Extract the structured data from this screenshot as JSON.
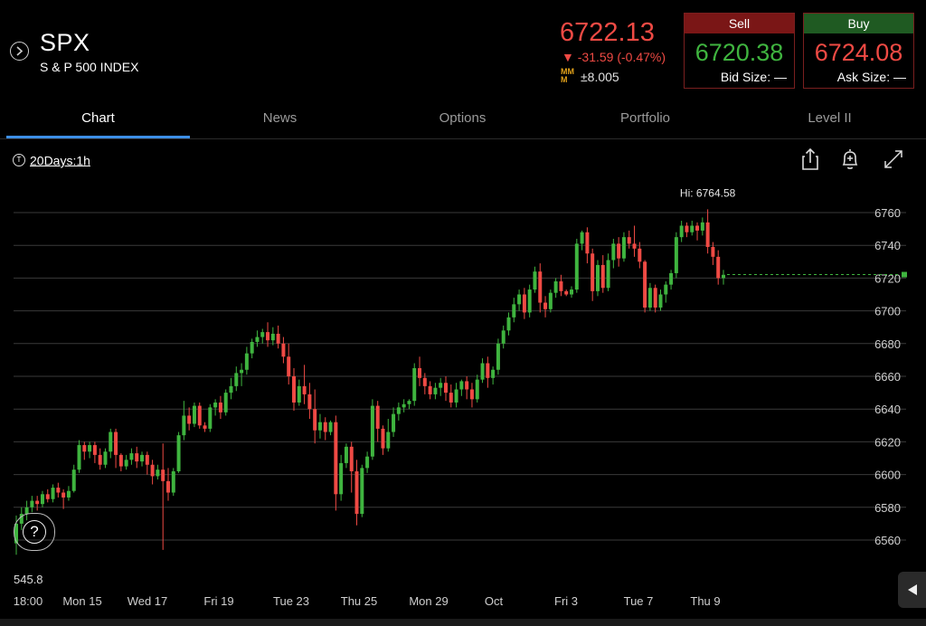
{
  "header": {
    "symbol": "SPX",
    "symbol_name": "S & P 500 INDEX",
    "last_price": "6722.13",
    "change": "▼ -31.59 (-0.47%)",
    "mm_icon_text": "MM M",
    "mm_value": "±8.005",
    "sell": {
      "label": "Sell",
      "price": "6720.38",
      "size": "Bid Size: —"
    },
    "buy": {
      "label": "Buy",
      "price": "6724.08",
      "size": "Ask Size: —"
    }
  },
  "tabs": [
    "Chart",
    "News",
    "Options",
    "Portfolio",
    "Level II"
  ],
  "active_tab": "Chart",
  "toolbar": {
    "range_icon": "T",
    "range_label": "20Days:1h",
    "icons": [
      "share-icon",
      "alert-bell-icon",
      "expand-icon"
    ]
  },
  "help_label": "?",
  "low_label": "545.8",
  "colors": {
    "up": "#3fb43f",
    "down": "#ef4a44",
    "accent": "#3d8fe6",
    "grid": "#3a3a3a"
  },
  "chart_data": {
    "type": "candlestick",
    "interval": "1h",
    "range": "20Days",
    "hi_annotation": "Hi: 6764.58",
    "ylim": [
      6545,
      6770
    ],
    "y_ticks": [
      6560,
      6580,
      6600,
      6620,
      6640,
      6660,
      6680,
      6700,
      6720,
      6740,
      6760
    ],
    "x_labels": [
      "18:00",
      "Mon 15",
      "Wed 17",
      "Fri 19",
      "Tue 23",
      "Thu 25",
      "Mon 29",
      "Oct",
      "Fri 3",
      "Tue 7",
      "Thu 9"
    ],
    "last_value": 6722.13,
    "candles": [
      [
        6558,
        6570,
        6551,
        6575
      ],
      [
        6570,
        6576,
        6566,
        6580
      ],
      [
        6576,
        6580,
        6572,
        6584
      ],
      [
        6580,
        6584,
        6577,
        6587
      ],
      [
        6584,
        6582,
        6578,
        6587
      ],
      [
        6582,
        6588,
        6580,
        6590
      ],
      [
        6588,
        6585,
        6583,
        6591
      ],
      [
        6585,
        6592,
        6583,
        6594
      ],
      [
        6592,
        6589,
        6586,
        6595
      ],
      [
        6589,
        6586,
        6579,
        6591
      ],
      [
        6586,
        6590,
        6584,
        6593
      ],
      [
        6590,
        6603,
        6589,
        6606
      ],
      [
        6603,
        6618,
        6601,
        6621
      ],
      [
        6618,
        6614,
        6609,
        6620
      ],
      [
        6614,
        6618,
        6610,
        6620
      ],
      [
        6618,
        6612,
        6607,
        6620
      ],
      [
        6612,
        6606,
        6603,
        6616
      ],
      [
        6606,
        6614,
        6604,
        6616
      ],
      [
        6614,
        6626,
        6610,
        6628
      ],
      [
        6626,
        6612,
        6604,
        6628
      ],
      [
        6612,
        6605,
        6602,
        6613
      ],
      [
        6605,
        6609,
        6603,
        6612
      ],
      [
        6609,
        6613,
        6606,
        6616
      ],
      [
        6613,
        6608,
        6604,
        6617
      ],
      [
        6608,
        6612,
        6605,
        6614
      ],
      [
        6612,
        6606,
        6600,
        6614
      ],
      [
        6606,
        6599,
        6594,
        6609
      ],
      [
        6599,
        6603,
        6597,
        6606
      ],
      [
        6603,
        6596,
        6554,
        6619
      ],
      [
        6596,
        6589,
        6584,
        6604
      ],
      [
        6589,
        6602,
        6587,
        6604
      ],
      [
        6602,
        6624,
        6601,
        6626
      ],
      [
        6624,
        6636,
        6621,
        6645
      ],
      [
        6636,
        6631,
        6627,
        6641
      ],
      [
        6631,
        6642,
        6629,
        6644
      ],
      [
        6642,
        6630,
        6628,
        6644
      ],
      [
        6630,
        6628,
        6626,
        6632
      ],
      [
        6628,
        6641,
        6626,
        6643
      ],
      [
        6641,
        6644,
        6636,
        6646
      ],
      [
        6644,
        6638,
        6634,
        6648
      ],
      [
        6638,
        6650,
        6636,
        6652
      ],
      [
        6650,
        6654,
        6646,
        6659
      ],
      [
        6654,
        6662,
        6651,
        6666
      ],
      [
        6662,
        6664,
        6654,
        6668
      ],
      [
        6664,
        6674,
        6661,
        6678
      ],
      [
        6674,
        6681,
        6671,
        6683
      ],
      [
        6681,
        6684,
        6678,
        6688
      ],
      [
        6684,
        6687,
        6680,
        6689
      ],
      [
        6687,
        6682,
        6678,
        6693
      ],
      [
        6682,
        6686,
        6679,
        6690
      ],
      [
        6686,
        6680,
        6677,
        6691
      ],
      [
        6680,
        6672,
        6668,
        6684
      ],
      [
        6672,
        6660,
        6655,
        6680
      ],
      [
        6660,
        6644,
        6639,
        6665
      ],
      [
        6644,
        6654,
        6642,
        6658
      ],
      [
        6654,
        6649,
        6643,
        6667
      ],
      [
        6649,
        6640,
        6634,
        6656
      ],
      [
        6640,
        6627,
        6619,
        6652
      ],
      [
        6627,
        6632,
        6622,
        6637
      ],
      [
        6632,
        6626,
        6621,
        6635
      ],
      [
        6626,
        6632,
        6624,
        6633
      ],
      [
        6632,
        6588,
        6578,
        6636
      ],
      [
        6588,
        6607,
        6584,
        6612
      ],
      [
        6607,
        6617,
        6604,
        6619
      ],
      [
        6617,
        6602,
        6589,
        6620
      ],
      [
        6602,
        6576,
        6569,
        6609
      ],
      [
        6576,
        6604,
        6574,
        6606
      ],
      [
        6604,
        6611,
        6601,
        6614
      ],
      [
        6611,
        6642,
        6609,
        6646
      ],
      [
        6642,
        6628,
        6620,
        6645
      ],
      [
        6628,
        6616,
        6612,
        6630
      ],
      [
        6616,
        6626,
        6614,
        6634
      ],
      [
        6626,
        6637,
        6623,
        6641
      ],
      [
        6637,
        6641,
        6633,
        6644
      ],
      [
        6641,
        6643,
        6638,
        6646
      ],
      [
        6643,
        6645,
        6640,
        6646
      ],
      [
        6645,
        6665,
        6642,
        6668
      ],
      [
        6665,
        6659,
        6654,
        6672
      ],
      [
        6659,
        6654,
        6649,
        6662
      ],
      [
        6654,
        6649,
        6646,
        6657
      ],
      [
        6649,
        6653,
        6646,
        6656
      ],
      [
        6653,
        6656,
        6648,
        6659
      ],
      [
        6656,
        6650,
        6645,
        6660
      ],
      [
        6650,
        6644,
        6641,
        6655
      ],
      [
        6644,
        6652,
        6641,
        6656
      ],
      [
        6652,
        6657,
        6648,
        6658
      ],
      [
        6657,
        6652,
        6646,
        6660
      ],
      [
        6652,
        6646,
        6641,
        6656
      ],
      [
        6646,
        6658,
        6644,
        6661
      ],
      [
        6658,
        6668,
        6656,
        6671
      ],
      [
        6668,
        6659,
        6653,
        6672
      ],
      [
        6659,
        6664,
        6655,
        6666
      ],
      [
        6664,
        6680,
        6661,
        6683
      ],
      [
        6680,
        6688,
        6677,
        6691
      ],
      [
        6688,
        6696,
        6685,
        6699
      ],
      [
        6696,
        6704,
        6693,
        6708
      ],
      [
        6704,
        6710,
        6700,
        6713
      ],
      [
        6710,
        6699,
        6695,
        6714
      ],
      [
        6699,
        6713,
        6696,
        6716
      ],
      [
        6713,
        6724,
        6711,
        6727
      ],
      [
        6724,
        6705,
        6699,
        6729
      ],
      [
        6705,
        6701,
        6696,
        6709
      ],
      [
        6701,
        6711,
        6699,
        6713
      ],
      [
        6711,
        6718,
        6708,
        6720
      ],
      [
        6718,
        6712,
        6709,
        6722
      ],
      [
        6712,
        6710,
        6709,
        6713
      ],
      [
        6710,
        6713,
        6708,
        6715
      ],
      [
        6713,
        6741,
        6711,
        6744
      ],
      [
        6741,
        6748,
        6737,
        6749
      ],
      [
        6748,
        6735,
        6729,
        6751
      ],
      [
        6735,
        6712,
        6706,
        6738
      ],
      [
        6712,
        6728,
        6709,
        6731
      ],
      [
        6728,
        6714,
        6711,
        6734
      ],
      [
        6714,
        6731,
        6712,
        6735
      ],
      [
        6731,
        6741,
        6726,
        6744
      ],
      [
        6741,
        6732,
        6727,
        6745
      ],
      [
        6732,
        6745,
        6730,
        6748
      ],
      [
        6745,
        6741,
        6738,
        6749
      ],
      [
        6741,
        6738,
        6733,
        6752
      ],
      [
        6738,
        6730,
        6726,
        6742
      ],
      [
        6730,
        6702,
        6699,
        6731
      ],
      [
        6702,
        6714,
        6700,
        6717
      ],
      [
        6714,
        6702,
        6699,
        6716
      ],
      [
        6702,
        6710,
        6700,
        6713
      ],
      [
        6710,
        6716,
        6705,
        6718
      ],
      [
        6716,
        6723,
        6713,
        6725
      ],
      [
        6723,
        6745,
        6720,
        6748
      ],
      [
        6745,
        6752,
        6742,
        6755
      ],
      [
        6752,
        6748,
        6745,
        6754
      ],
      [
        6748,
        6752,
        6746,
        6755
      ],
      [
        6752,
        6749,
        6743,
        6754
      ],
      [
        6749,
        6754,
        6746,
        6757
      ],
      [
        6754,
        6739,
        6735,
        6762
      ],
      [
        6739,
        6733,
        6728,
        6742
      ],
      [
        6733,
        6720,
        6716,
        6737
      ],
      [
        6720,
        6722,
        6716,
        6725
      ]
    ]
  }
}
